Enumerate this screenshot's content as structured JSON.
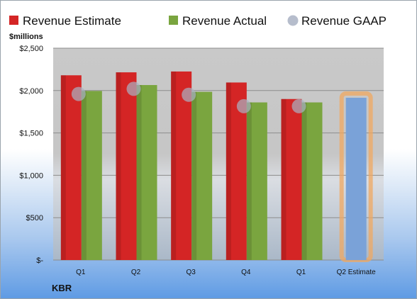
{
  "chart_data": {
    "type": "bar",
    "unit_label": "$millions",
    "company": "KBR",
    "categories": [
      "Q1",
      "Q2",
      "Q3",
      "Q4",
      "Q1",
      "Q2 Estimate"
    ],
    "series": [
      {
        "name": "Revenue Estimate",
        "color": "#d42525",
        "values": [
          2180,
          2215,
          2225,
          2095,
          1900,
          null
        ]
      },
      {
        "name": "Revenue Actual",
        "color": "#7aa53f",
        "values": [
          1995,
          2065,
          1985,
          1860,
          1860,
          null
        ]
      },
      {
        "name": "Revenue GAAP",
        "color": "#a9b2c3",
        "values": [
          1960,
          2020,
          1950,
          1815,
          1815,
          null
        ]
      }
    ],
    "estimate_bar": {
      "category": "Q2 Estimate",
      "value": 1915,
      "color": "#7aa2d8",
      "highlight": "#f0a860"
    },
    "y_ticks": [
      {
        "value": 0,
        "label": "$-"
      },
      {
        "value": 500,
        "label": "$500"
      },
      {
        "value": 1000,
        "label": "$1,000"
      },
      {
        "value": 1500,
        "label": "$1,500"
      },
      {
        "value": 2000,
        "label": "$2,000"
      },
      {
        "value": 2500,
        "label": "$2,500"
      }
    ],
    "ylim": [
      0,
      2500
    ],
    "grid": true,
    "legend_position": "top"
  }
}
